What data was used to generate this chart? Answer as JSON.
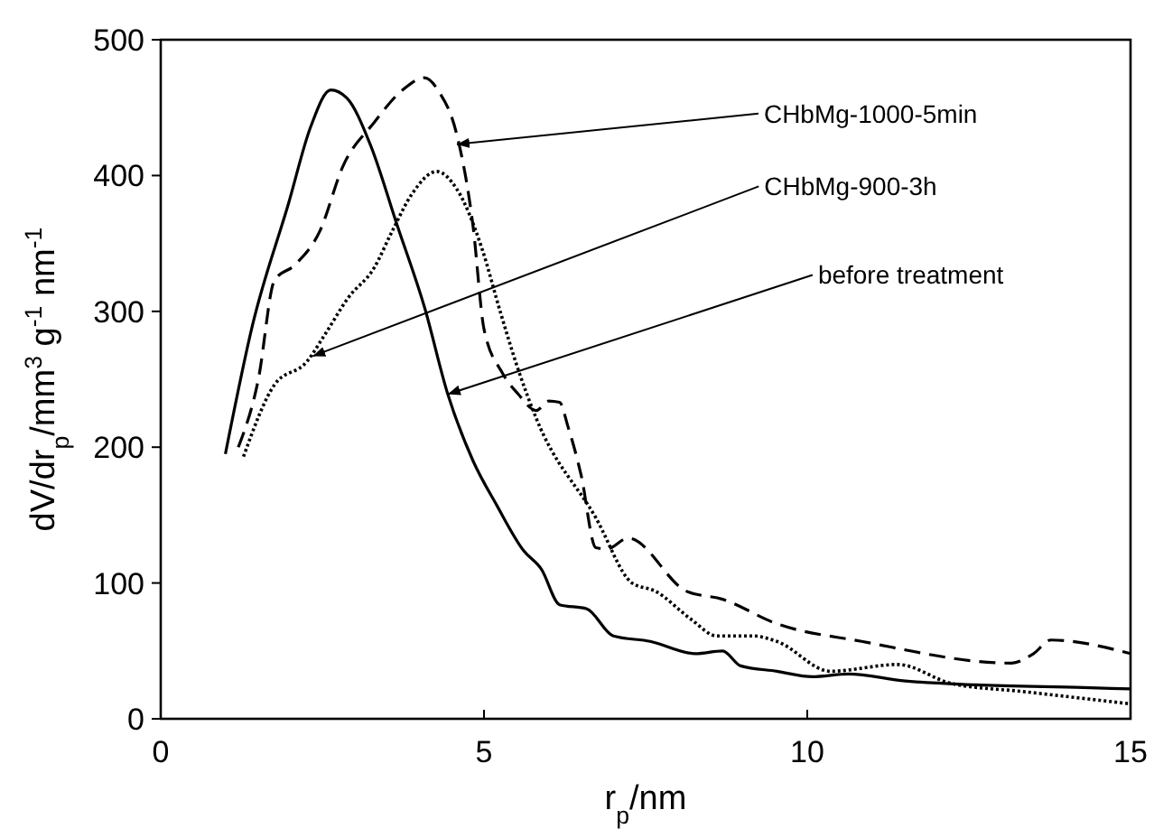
{
  "chart_data": {
    "type": "line",
    "xlabel": "r$_{p}$/nm",
    "ylabel": "dV/dr$_{p}$/mm$^{3}$ g$^{-1}$ nm$^{-1}$",
    "xlim": [
      0,
      15
    ],
    "xticks": [
      0,
      5,
      10,
      15
    ],
    "ylim": [
      0,
      500
    ],
    "yticks": [
      0,
      100,
      200,
      300,
      400,
      500
    ],
    "grid": false,
    "series": [
      {
        "color": "#000000",
        "line_style": "solid",
        "x": [
          1.0,
          1.42,
          1.98,
          2.32,
          2.63,
          2.88,
          3.24,
          3.66,
          4.08,
          4.44,
          4.83,
          5.2,
          5.61,
          5.89,
          6.17,
          6.59,
          7.0,
          7.57,
          8.27,
          8.69,
          8.97,
          9.53,
          10.08,
          10.64,
          11.48,
          12.6,
          14.27,
          15
        ],
        "values": [
          195,
          290,
          380,
          436,
          463,
          457,
          423,
          363,
          303,
          239,
          190,
          157,
          124,
          110,
          84,
          81,
          61,
          57,
          48,
          50,
          39,
          35,
          31,
          33,
          28,
          25,
          23,
          22
        ]
      },
      {
        "color": "#000000",
        "line_style": "dashed",
        "x": [
          1.2,
          1.51,
          1.76,
          2.07,
          2.46,
          2.82,
          3.3,
          3.74,
          4.08,
          4.3,
          4.58,
          4.83,
          5.0,
          5.28,
          5.53,
          5.81,
          6.0,
          6.17,
          6.3,
          6.5,
          6.73,
          6.9,
          7.23,
          8.13,
          8.69,
          9.53,
          10.84,
          13.16,
          13.5,
          13.77,
          15
        ],
        "values": [
          200,
          250,
          323,
          334,
          359,
          407,
          439,
          463,
          472,
          462,
          430,
          363,
          287,
          255,
          239,
          227,
          234,
          233,
          215,
          180,
          126,
          125,
          133,
          94,
          88,
          70,
          57,
          41,
          48,
          58,
          48
        ]
      },
      {
        "color": "#000000",
        "line_style": "dotted",
        "x": [
          1.28,
          1.76,
          2.26,
          2.54,
          2.9,
          3.3,
          3.58,
          3.88,
          4.27,
          4.58,
          4.97,
          5.25,
          5.53,
          5.81,
          6.73,
          7.29,
          7.65,
          8.21,
          8.6,
          9.16,
          9.53,
          10.36,
          11.4,
          12.23,
          13.35,
          15
        ],
        "values": [
          193,
          246,
          263,
          283,
          310,
          332,
          359,
          386,
          403,
          390,
          346,
          300,
          257,
          221,
          148,
          100,
          94,
          73,
          61,
          61,
          57,
          35,
          40,
          26,
          20,
          11
        ]
      }
    ],
    "annotations": [
      {
        "text": "CHbMg-1000-5min",
        "x": 4.58,
        "y": 423
      },
      {
        "text": "CHbMg-900-3h",
        "x": 2.35,
        "y": 267
      },
      {
        "text": "before treatment",
        "x": 4.44,
        "y": 239
      }
    ]
  }
}
